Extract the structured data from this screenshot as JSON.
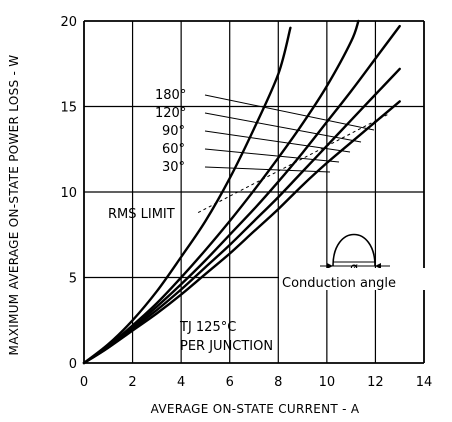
{
  "chart_data": {
    "type": "line",
    "xlabel": "AVERAGE ON-STATE CURRENT - A",
    "ylabel": "MAXIMUM AVERAGE ON-STATE POWER LOSS - W",
    "xlim": [
      0,
      14
    ],
    "ylim": [
      0,
      20
    ],
    "x_ticks": [
      "0",
      "2",
      "4",
      "6",
      "8",
      "10",
      "12",
      "14"
    ],
    "y_ticks": [
      "0",
      "5",
      "10",
      "15",
      "20"
    ],
    "grid": true,
    "series": [
      {
        "name": "30°",
        "x": [
          0,
          1,
          2,
          3,
          4,
          5,
          6,
          7,
          8,
          9,
          10,
          11,
          12,
          13
        ],
        "y": [
          0,
          0.9,
          1.9,
          2.9,
          4.0,
          5.2,
          6.4,
          7.7,
          9.0,
          10.4,
          11.7,
          12.9,
          14.1,
          15.3
        ]
      },
      {
        "name": "60°",
        "x": [
          0,
          1,
          2,
          3,
          4,
          5,
          6,
          7,
          8,
          9,
          10,
          11,
          12,
          13
        ],
        "y": [
          0,
          0.9,
          2.0,
          3.1,
          4.3,
          5.6,
          6.9,
          8.3,
          9.7,
          11.2,
          12.7,
          14.2,
          15.7,
          17.2
        ]
      },
      {
        "name": "90°",
        "x": [
          0,
          1,
          2,
          3,
          4,
          5,
          6,
          7,
          8,
          9,
          10,
          11,
          12,
          13
        ],
        "y": [
          0,
          1.0,
          2.1,
          3.3,
          4.6,
          6.0,
          7.5,
          9.0,
          10.6,
          12.3,
          14.1,
          15.9,
          17.8,
          19.7
        ]
      },
      {
        "name": "120°",
        "x": [
          0,
          1,
          2,
          3,
          4,
          5,
          6,
          7,
          8,
          9,
          10,
          11,
          11.3
        ],
        "y": [
          0,
          1.0,
          2.2,
          3.5,
          5.0,
          6.6,
          8.3,
          10.1,
          12.0,
          14.0,
          16.2,
          18.8,
          20.0
        ]
      },
      {
        "name": "180°",
        "x": [
          0,
          1,
          2,
          3,
          4,
          5,
          6,
          7,
          8,
          8.5
        ],
        "y": [
          0,
          1.1,
          2.5,
          4.2,
          6.2,
          8.3,
          10.8,
          13.7,
          16.9,
          19.6
        ]
      }
    ],
    "rms_limit": {
      "label": "RMS LIMIT",
      "x": [
        4.7,
        12.6
      ],
      "y": [
        8.8,
        14.6
      ]
    },
    "curve_labels": [
      "180°",
      "120°",
      "90°",
      "60°",
      "30°"
    ],
    "annotations": [
      "TJ 125°C",
      "PER JUNCTION",
      "Conduction angle",
      "ø"
    ]
  }
}
